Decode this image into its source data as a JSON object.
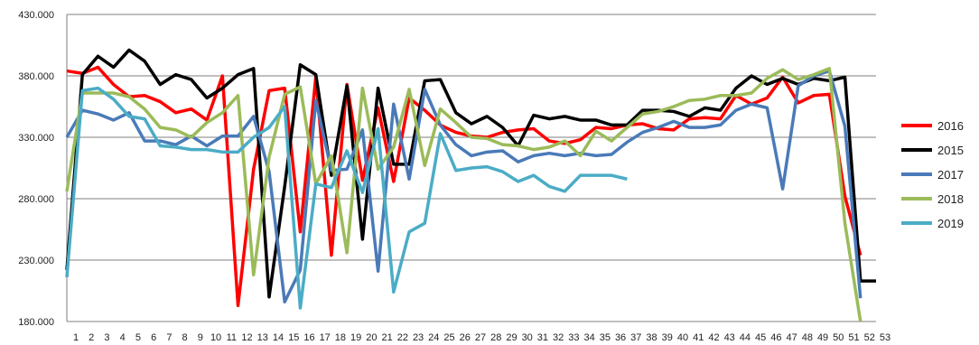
{
  "chart_data": {
    "type": "line",
    "title": "",
    "xlabel": "",
    "ylabel": "",
    "ylim": [
      180000,
      430000
    ],
    "yticks": [
      "180.000",
      "230.000",
      "280.000",
      "330.000",
      "380.000",
      "430.000"
    ],
    "ytick_values": [
      180000,
      230000,
      280000,
      330000,
      380000,
      430000
    ],
    "x": [
      1,
      2,
      3,
      4,
      5,
      6,
      7,
      8,
      9,
      10,
      11,
      12,
      13,
      14,
      15,
      16,
      17,
      18,
      19,
      20,
      21,
      22,
      23,
      24,
      25,
      26,
      27,
      28,
      29,
      30,
      31,
      32,
      33,
      34,
      35,
      36,
      37,
      38,
      39,
      40,
      41,
      42,
      43,
      44,
      45,
      46,
      47,
      48,
      49,
      50,
      51,
      52,
      53
    ],
    "grid": "horizontal",
    "legend_position": "right",
    "series": [
      {
        "name": "2016",
        "color": "#ff0000",
        "values": [
          384000,
          382000,
          387000,
          373000,
          363000,
          364000,
          359000,
          350000,
          353000,
          344000,
          380000,
          193000,
          304000,
          368000,
          370000,
          253000,
          379000,
          234000,
          373000,
          295000,
          354000,
          294000,
          362000,
          352000,
          340000,
          334000,
          331000,
          330000,
          334000,
          336000,
          337000,
          327000,
          325000,
          328000,
          338000,
          337000,
          340000,
          341000,
          337000,
          336000,
          345000,
          346000,
          345000,
          364000,
          357000,
          362000,
          379000,
          358000,
          364000,
          365000,
          282000,
          234000,
          null
        ]
      },
      {
        "name": "2015",
        "color": "#000000",
        "values": [
          222000,
          381000,
          396000,
          387000,
          401000,
          392000,
          373000,
          381000,
          377000,
          362000,
          370000,
          381000,
          386000,
          200000,
          290000,
          389000,
          381000,
          299000,
          372000,
          247000,
          370000,
          308000,
          308000,
          376000,
          377000,
          350000,
          341000,
          347000,
          338000,
          323000,
          348000,
          345000,
          347000,
          344000,
          344000,
          340000,
          340000,
          352000,
          352000,
          351000,
          347000,
          354000,
          352000,
          370000,
          380000,
          373000,
          378000,
          373000,
          378000,
          376000,
          379000,
          213000,
          213000
        ]
      },
      {
        "name": "2017",
        "color": "#4a7ab8",
        "values": [
          330000,
          352000,
          349000,
          344000,
          350000,
          327000,
          327000,
          324000,
          331000,
          323000,
          331000,
          331000,
          347000,
          302000,
          196000,
          222000,
          360000,
          303000,
          304000,
          336000,
          221000,
          357000,
          296000,
          369000,
          340000,
          324000,
          315000,
          318000,
          319000,
          310000,
          315000,
          317000,
          315000,
          317000,
          315000,
          316000,
          326000,
          334000,
          338000,
          343000,
          338000,
          338000,
          340000,
          352000,
          357000,
          354000,
          288000,
          372000,
          380000,
          384000,
          339000,
          199000,
          null
        ]
      },
      {
        "name": "2018",
        "color": "#9bbb59",
        "values": [
          286000,
          366000,
          366000,
          366000,
          363000,
          353000,
          338000,
          336000,
          330000,
          342000,
          350000,
          364000,
          218000,
          314000,
          365000,
          371000,
          292000,
          315000,
          236000,
          370000,
          304000,
          322000,
          369000,
          307000,
          353000,
          342000,
          330000,
          329000,
          324000,
          323000,
          320000,
          322000,
          327000,
          315000,
          335000,
          327000,
          338000,
          349000,
          351000,
          355000,
          360000,
          361000,
          364000,
          364000,
          366000,
          378000,
          385000,
          377000,
          381000,
          386000,
          260000,
          180000,
          null
        ]
      },
      {
        "name": "2019",
        "color": "#4bacc6",
        "values": [
          216000,
          368000,
          370000,
          361000,
          347000,
          345000,
          323000,
          322000,
          320000,
          320000,
          318000,
          318000,
          330000,
          338000,
          355000,
          191000,
          292000,
          289000,
          319000,
          285000,
          337000,
          204000,
          253000,
          260000,
          333000,
          303000,
          305000,
          306000,
          302000,
          294000,
          299000,
          290000,
          286000,
          299000,
          299000,
          299000,
          296000,
          null,
          null,
          null,
          null,
          null,
          null,
          null,
          null,
          null,
          null,
          null,
          null,
          null,
          null,
          null,
          null
        ]
      }
    ]
  }
}
